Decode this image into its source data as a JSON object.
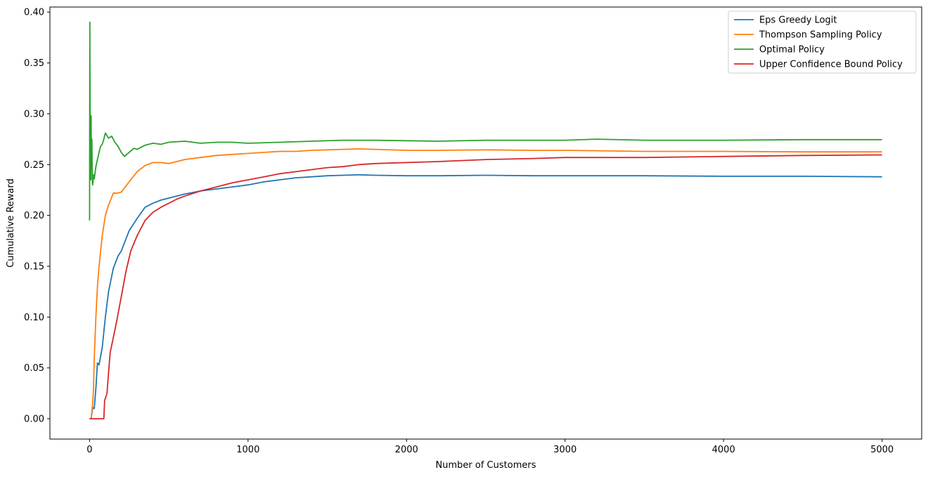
{
  "chart_data": {
    "type": "line",
    "title": "",
    "xlabel": "Number of Customers",
    "ylabel": "Cumulative Reward",
    "xlim": [
      -250,
      5250
    ],
    "ylim": [
      -0.02,
      0.405
    ],
    "xticks": [
      0,
      1000,
      2000,
      3000,
      4000,
      5000
    ],
    "xtick_labels": [
      "0",
      "1000",
      "2000",
      "3000",
      "4000",
      "5000"
    ],
    "yticks": [
      0.0,
      0.05,
      0.1,
      0.15,
      0.2,
      0.25,
      0.3,
      0.35,
      0.4
    ],
    "ytick_labels": [
      "0.00",
      "0.05",
      "0.10",
      "0.15",
      "0.20",
      "0.25",
      "0.30",
      "0.35",
      "0.40"
    ],
    "grid": false,
    "legend_position": "top-right",
    "series": [
      {
        "name": "Eps Greedy Logit",
        "color": "#1f77b4",
        "x": [
          0,
          10,
          20,
          30,
          40,
          50,
          60,
          80,
          100,
          120,
          150,
          180,
          200,
          250,
          300,
          350,
          400,
          450,
          500,
          600,
          700,
          800,
          900,
          1000,
          1100,
          1200,
          1300,
          1400,
          1500,
          1600,
          1700,
          1800,
          2000,
          2200,
          2500,
          2800,
          3000,
          3500,
          4000,
          4500,
          5000
        ],
        "y": [
          0.0,
          0.0,
          0.011,
          0.01,
          0.03,
          0.055,
          0.053,
          0.07,
          0.1,
          0.125,
          0.148,
          0.16,
          0.165,
          0.185,
          0.197,
          0.208,
          0.212,
          0.215,
          0.217,
          0.221,
          0.224,
          0.226,
          0.228,
          0.23,
          0.233,
          0.235,
          0.237,
          0.238,
          0.239,
          0.2395,
          0.24,
          0.2395,
          0.239,
          0.239,
          0.2395,
          0.239,
          0.239,
          0.239,
          0.2385,
          0.2385,
          0.238
        ]
      },
      {
        "name": "Thompson Sampling Policy",
        "color": "#ff7f0e",
        "x": [
          0,
          10,
          20,
          25,
          30,
          40,
          50,
          60,
          80,
          100,
          120,
          150,
          180,
          200,
          250,
          300,
          350,
          400,
          450,
          500,
          600,
          700,
          800,
          900,
          1000,
          1100,
          1200,
          1300,
          1400,
          1500,
          1600,
          1700,
          1800,
          2000,
          2200,
          2500,
          2800,
          3000,
          3500,
          4000,
          4500,
          5000
        ],
        "y": [
          0.0,
          0.0,
          0.015,
          0.03,
          0.06,
          0.1,
          0.13,
          0.15,
          0.18,
          0.2,
          0.21,
          0.222,
          0.222,
          0.223,
          0.233,
          0.243,
          0.249,
          0.252,
          0.252,
          0.251,
          0.255,
          0.257,
          0.259,
          0.26,
          0.261,
          0.262,
          0.263,
          0.263,
          0.264,
          0.2645,
          0.265,
          0.2655,
          0.265,
          0.264,
          0.264,
          0.2645,
          0.264,
          0.264,
          0.263,
          0.263,
          0.2625,
          0.2625
        ]
      },
      {
        "name": "Optimal Policy",
        "color": "#2ca02c",
        "x": [
          0,
          2,
          4,
          6,
          8,
          10,
          12,
          15,
          18,
          20,
          25,
          30,
          40,
          50,
          60,
          70,
          80,
          90,
          100,
          120,
          140,
          160,
          180,
          200,
          220,
          250,
          280,
          300,
          350,
          400,
          450,
          500,
          600,
          700,
          800,
          900,
          1000,
          1200,
          1400,
          1600,
          1800,
          2000,
          2200,
          2500,
          2800,
          3000,
          3200,
          3500,
          4000,
          4500,
          5000
        ],
        "y": [
          0.195,
          0.39,
          0.255,
          0.297,
          0.235,
          0.298,
          0.245,
          0.275,
          0.232,
          0.23,
          0.24,
          0.236,
          0.248,
          0.255,
          0.262,
          0.268,
          0.27,
          0.275,
          0.281,
          0.276,
          0.278,
          0.272,
          0.268,
          0.262,
          0.258,
          0.262,
          0.266,
          0.265,
          0.269,
          0.271,
          0.27,
          0.272,
          0.273,
          0.271,
          0.272,
          0.272,
          0.271,
          0.272,
          0.273,
          0.274,
          0.274,
          0.2735,
          0.273,
          0.274,
          0.274,
          0.274,
          0.275,
          0.274,
          0.274,
          0.2745,
          0.2745
        ]
      },
      {
        "name": "Upper Confidence Bound Policy",
        "color": "#d62728",
        "x": [
          0,
          20,
          40,
          60,
          80,
          90,
          95,
          100,
          110,
          120,
          130,
          150,
          170,
          200,
          230,
          260,
          300,
          350,
          400,
          450,
          500,
          550,
          600,
          700,
          800,
          900,
          1000,
          1100,
          1200,
          1300,
          1400,
          1500,
          1600,
          1700,
          1800,
          2000,
          2200,
          2500,
          2800,
          3000,
          3500,
          4000,
          4500,
          5000
        ],
        "y": [
          0.0,
          0.0,
          0.0,
          0.0,
          0.0,
          0.0,
          0.018,
          0.02,
          0.025,
          0.045,
          0.065,
          0.08,
          0.095,
          0.12,
          0.145,
          0.165,
          0.18,
          0.195,
          0.203,
          0.208,
          0.212,
          0.216,
          0.219,
          0.224,
          0.228,
          0.232,
          0.235,
          0.238,
          0.241,
          0.243,
          0.245,
          0.247,
          0.248,
          0.25,
          0.251,
          0.252,
          0.253,
          0.255,
          0.256,
          0.257,
          0.257,
          0.258,
          0.259,
          0.2595
        ]
      }
    ]
  }
}
